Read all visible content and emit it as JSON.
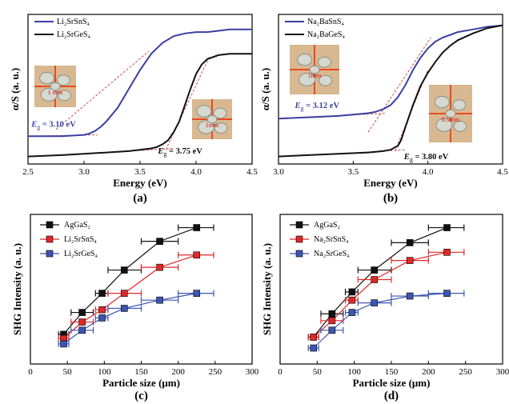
{
  "colors": {
    "blue": "#3a3fa0",
    "black": "#111111",
    "red": "#e02828",
    "blue_mark": "#3c55b0",
    "annot": "#c8504a",
    "photo_bg": "#d8b890",
    "photo_grid": "#e84a20"
  },
  "chart_data": [
    {
      "panel": "(a)",
      "type": "line",
      "xlabel": "Energy (eV)",
      "ylabel": "α/S (a. u.)",
      "xlim": [
        2.5,
        4.5
      ],
      "xticks": [
        "2.5",
        "3.0",
        "3.5",
        "4.0",
        "4.5"
      ],
      "series": [
        {
          "name": "Li₂SrSnS₄",
          "color": "blue",
          "x": [
            2.5,
            2.8,
            3.0,
            3.05,
            3.1,
            3.15,
            3.2,
            3.3,
            3.4,
            3.5,
            3.6,
            3.7,
            3.8,
            3.9,
            4.0,
            4.1,
            4.2,
            4.3,
            4.4,
            4.5
          ],
          "y": [
            0.17,
            0.17,
            0.18,
            0.19,
            0.21,
            0.24,
            0.28,
            0.38,
            0.52,
            0.66,
            0.78,
            0.86,
            0.91,
            0.93,
            0.94,
            0.94,
            0.95,
            0.96,
            0.96,
            0.96
          ]
        },
        {
          "name": "Li₂SrGeS₄",
          "color": "black",
          "x": [
            2.5,
            2.8,
            3.0,
            3.2,
            3.4,
            3.5,
            3.6,
            3.65,
            3.7,
            3.75,
            3.8,
            3.85,
            3.9,
            3.95,
            4.0,
            4.05,
            4.1,
            4.2,
            4.3,
            4.5
          ],
          "y": [
            0.02,
            0.03,
            0.04,
            0.05,
            0.06,
            0.07,
            0.08,
            0.09,
            0.11,
            0.14,
            0.2,
            0.28,
            0.4,
            0.52,
            0.63,
            0.7,
            0.74,
            0.77,
            0.78,
            0.78
          ]
        }
      ],
      "annotations": [
        {
          "text": "Eg = 3.10 eV",
          "sub": "g",
          "pre": "E",
          "post": " = 3.10 eV",
          "x": 2.53,
          "y": 0.24,
          "color": "blue"
        },
        {
          "text": "Eg = 3.75 eV",
          "pre": "E",
          "sub": "g",
          "post": " = 3.75 eV",
          "x": 3.66,
          "y": 0.04,
          "color": "black"
        }
      ],
      "tangents": [
        {
          "x": [
            2.75,
            3.58
          ],
          "y": [
            0.22,
            0.8
          ]
        },
        {
          "x": [
            2.5,
            3.12
          ],
          "y": [
            0.17,
            0.18
          ]
        },
        {
          "x": [
            3.73,
            4.12
          ],
          "y": [
            0.07,
            0.76
          ]
        },
        {
          "x": [
            3.2,
            3.8
          ],
          "y": [
            0.05,
            0.08
          ]
        }
      ],
      "photo_labels": [
        "1 mm",
        "1mm"
      ]
    },
    {
      "panel": "(b)",
      "type": "line",
      "xlabel": "Energy (eV)",
      "ylabel": "α/S (a. u.)",
      "xlim": [
        3.0,
        4.5
      ],
      "xticks": [
        "3.0",
        "3.5",
        "4.0",
        "4.5"
      ],
      "series": [
        {
          "name": "Na₂BaSnS₄",
          "color": "blue",
          "x": [
            3.0,
            3.2,
            3.4,
            3.5,
            3.6,
            3.65,
            3.7,
            3.75,
            3.8,
            3.85,
            3.9,
            3.95,
            4.0,
            4.05,
            4.1,
            4.15,
            4.2,
            4.3,
            4.4,
            4.5
          ],
          "y": [
            0.3,
            0.31,
            0.32,
            0.33,
            0.34,
            0.35,
            0.37,
            0.4,
            0.46,
            0.55,
            0.66,
            0.75,
            0.82,
            0.87,
            0.9,
            0.92,
            0.94,
            0.96,
            0.98,
            0.99
          ]
        },
        {
          "name": "Na₂BaGeS₄",
          "color": "black",
          "x": [
            3.0,
            3.2,
            3.4,
            3.6,
            3.7,
            3.75,
            3.8,
            3.82,
            3.85,
            3.9,
            3.95,
            4.0,
            4.05,
            4.1,
            4.15,
            4.2,
            4.3,
            4.4,
            4.5
          ],
          "y": [
            0.02,
            0.03,
            0.04,
            0.05,
            0.06,
            0.07,
            0.1,
            0.14,
            0.24,
            0.4,
            0.54,
            0.64,
            0.72,
            0.79,
            0.84,
            0.88,
            0.93,
            0.97,
            0.99
          ]
        }
      ],
      "annotations": [
        {
          "pre": "E",
          "sub": "g",
          "post": " = 3.12 eV",
          "x": 3.11,
          "y": 0.38,
          "color": "blue"
        },
        {
          "pre": "E",
          "sub": "g",
          "post": " = 3.80 eV",
          "x": 3.84,
          "y": 0.0,
          "color": "black"
        }
      ],
      "tangents": [
        {
          "x": [
            3.6,
            4.02
          ],
          "y": [
            0.2,
            0.9
          ]
        },
        {
          "x": [
            3.0,
            3.72
          ],
          "y": [
            0.3,
            0.34
          ]
        },
        {
          "x": [
            3.78,
            4.0
          ],
          "y": [
            0.06,
            0.66
          ]
        },
        {
          "x": [
            3.4,
            3.85
          ],
          "y": [
            0.04,
            0.07
          ]
        }
      ],
      "photo_labels": [
        "1mm",
        "0.5mm"
      ]
    },
    {
      "panel": "(c)",
      "type": "scatter",
      "xlabel": "Particle size (μm)",
      "ylabel": "SHG Intensity (a. u.)",
      "xlim": [
        0,
        300
      ],
      "xticks": [
        "0",
        "50",
        "100",
        "150",
        "200",
        "250",
        "300"
      ],
      "series": [
        {
          "name": "AgGaS₂",
          "color": "black",
          "marker": "square",
          "x": [
            45,
            70,
            97,
            127,
            175,
            225
          ],
          "y": [
            0.17,
            0.33,
            0.47,
            0.64,
            0.85,
            0.95
          ],
          "xerr": [
            [
              38,
              52
            ],
            [
              55,
              85
            ],
            [
              88,
              105
            ],
            [
              105,
              150
            ],
            [
              150,
              200
            ],
            [
              200,
              248
            ]
          ]
        },
        {
          "name": "Li₂SrSnS₄",
          "color": "red",
          "marker": "square",
          "x": [
            45,
            70,
            97,
            127,
            175,
            225
          ],
          "y": [
            0.14,
            0.26,
            0.35,
            0.47,
            0.66,
            0.75
          ],
          "xerr": [
            [
              38,
              52
            ],
            [
              55,
              85
            ],
            [
              88,
              105
            ],
            [
              105,
              150
            ],
            [
              150,
              200
            ],
            [
              200,
              248
            ]
          ]
        },
        {
          "name": "Li₂SrGeS₄",
          "color": "blue_mark",
          "marker": "square",
          "x": [
            45,
            70,
            97,
            127,
            175,
            225
          ],
          "y": [
            0.1,
            0.2,
            0.29,
            0.36,
            0.42,
            0.47
          ],
          "xerr": [
            [
              38,
              52
            ],
            [
              55,
              85
            ],
            [
              88,
              105
            ],
            [
              105,
              150
            ],
            [
              150,
              200
            ],
            [
              200,
              248
            ]
          ]
        }
      ]
    },
    {
      "panel": "(d)",
      "type": "scatter",
      "xlabel": "Particle size (μm)",
      "ylabel": "SHG Intensity (a. u.)",
      "xlim": [
        0,
        300
      ],
      "xticks": [
        "0",
        "50",
        "100",
        "150",
        "200",
        "250",
        "300"
      ],
      "series": [
        {
          "name": "AgGaS₂",
          "color": "black",
          "marker": "square",
          "x": [
            45,
            70,
            97,
            127,
            175,
            225
          ],
          "y": [
            0.15,
            0.32,
            0.48,
            0.64,
            0.84,
            0.95
          ],
          "xerr": [
            [
              38,
              52
            ],
            [
              55,
              85
            ],
            [
              88,
              105
            ],
            [
              105,
              150
            ],
            [
              150,
              200
            ],
            [
              200,
              248
            ]
          ]
        },
        {
          "name": "Na₂SrSnS₄",
          "color": "red",
          "marker": "square",
          "x": [
            45,
            70,
            97,
            127,
            175,
            225
          ],
          "y": [
            0.15,
            0.27,
            0.42,
            0.57,
            0.71,
            0.77
          ],
          "xerr": [
            [
              38,
              52
            ],
            [
              55,
              85
            ],
            [
              88,
              105
            ],
            [
              105,
              150
            ],
            [
              150,
              200
            ],
            [
              200,
              248
            ]
          ]
        },
        {
          "name": "Na₂SrGeS₄",
          "color": "blue_mark",
          "marker": "square",
          "x": [
            45,
            70,
            97,
            127,
            175,
            225
          ],
          "y": [
            0.07,
            0.2,
            0.33,
            0.4,
            0.45,
            0.47
          ],
          "xerr": [
            [
              38,
              52
            ],
            [
              55,
              85
            ],
            [
              88,
              105
            ],
            [
              105,
              150
            ],
            [
              150,
              200
            ],
            [
              200,
              248
            ]
          ]
        }
      ]
    }
  ]
}
